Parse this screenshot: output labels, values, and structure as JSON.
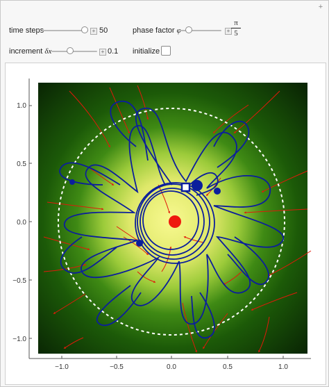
{
  "controls": {
    "time_steps": {
      "label": "time steps",
      "value": "50",
      "fraction": 0.93
    },
    "phase_factor": {
      "label_text": "phase factor",
      "symbol": "φ",
      "numerator": "π",
      "denominator": "5",
      "fraction": 0.25
    },
    "increment": {
      "label_text": "increment",
      "symbol": "δx",
      "value": "0.1",
      "fraction": 0.5
    },
    "initialize": {
      "label": "initialize",
      "checked": false
    }
  },
  "plot": {
    "x_ticks": [
      "−1.0",
      "−0.5",
      "0.0",
      "0.5",
      "1.0"
    ],
    "y_ticks": [
      "1.0",
      "0.5",
      "0.0",
      "−0.5",
      "−1.0"
    ],
    "colors": {
      "background_outer": "#0b2a05",
      "background_mid": "#3f8a14",
      "background_inner": "#f6f78a",
      "trajectory": "#0b1e9c",
      "flow": "#e01a0a",
      "boundary": "#ffffff"
    }
  }
}
